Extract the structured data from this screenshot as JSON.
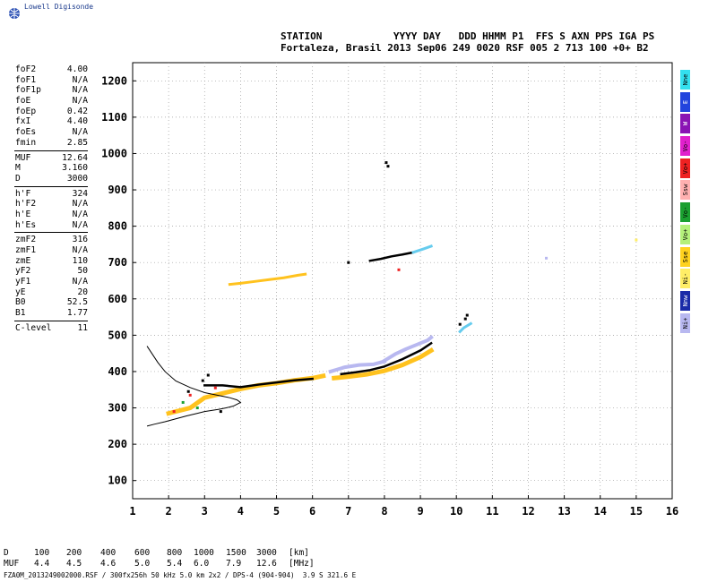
{
  "brand": "Lowell Digisonde",
  "header": {
    "line1": "STATION            YYYY DAY   DDD HHMM P1  FFS S AXN PPS IGA PS",
    "line2": "Fortaleza, Brasil 2013 Sep06 249 0020 RSF 005 2 713 100 +0+ B2"
  },
  "params": [
    [
      {
        "label": "foF2",
        "value": "4.00"
      },
      {
        "label": "foF1",
        "value": "N/A"
      },
      {
        "label": "foF1p",
        "value": "N/A"
      },
      {
        "label": "foE",
        "value": "N/A"
      },
      {
        "label": "foEp",
        "value": "0.42"
      },
      {
        "label": "fxI",
        "value": "4.40"
      },
      {
        "label": "foEs",
        "value": "N/A"
      },
      {
        "label": "fmin",
        "value": "2.85"
      }
    ],
    [
      {
        "label": "MUF",
        "value": "12.64"
      },
      {
        "label": "M",
        "value": "3.160"
      },
      {
        "label": "D",
        "value": "3000"
      }
    ],
    [
      {
        "label": "h'F",
        "value": "324"
      },
      {
        "label": "h'F2",
        "value": "N/A"
      },
      {
        "label": "h'E",
        "value": "N/A"
      },
      {
        "label": "h'Es",
        "value": "N/A"
      }
    ],
    [
      {
        "label": "zmF2",
        "value": "316"
      },
      {
        "label": "zmF1",
        "value": "N/A"
      },
      {
        "label": "zmE",
        "value": "110"
      },
      {
        "label": "yF2",
        "value": "50"
      },
      {
        "label": "yF1",
        "value": "N/A"
      },
      {
        "label": "yE",
        "value": "20"
      },
      {
        "label": "B0",
        "value": "52.5"
      },
      {
        "label": "B1",
        "value": "1.77"
      }
    ],
    [
      {
        "label": "C-level",
        "value": "11"
      }
    ]
  ],
  "legend": [
    {
      "label": "Nne",
      "color": "#33e0ee"
    },
    {
      "label": "E",
      "color": "#2244dd"
    },
    {
      "label": "W",
      "color": "#8a14b4"
    },
    {
      "label": "Vo-",
      "color": "#e020cc"
    },
    {
      "label": "Vo+",
      "color": "#ee2222"
    },
    {
      "label": "Ssw",
      "color": "#ffb0b0"
    },
    {
      "label": "Vo-",
      "color": "#1aa030"
    },
    {
      "label": "Vo+",
      "color": "#b4f07a"
    },
    {
      "label": "Sse",
      "color": "#ffd21e"
    },
    {
      "label": "Ni-",
      "color": "#ffee66"
    },
    {
      "label": "Nnw",
      "color": "#1a2aa8"
    },
    {
      "label": "Ni+",
      "color": "#b8b8f0"
    }
  ],
  "muf_table": {
    "d_label": "D",
    "muf_label": "MUF",
    "d_values": [
      "100",
      "200",
      "400",
      "600",
      "800",
      "1000",
      "1500",
      "3000"
    ],
    "muf_values": [
      "4.4",
      "4.5",
      "4.6",
      "5.0",
      "5.4",
      "6.0",
      "7.9",
      "12.6"
    ],
    "d_unit": "[km]",
    "muf_unit": "[MHz]"
  },
  "footer": "FZA0M_2013249002000.RSF / 300fx256h 50 kHz 5.0 km 2x2 / DPS-4 (904-904)  3.9 S 321.6 E",
  "chart_data": {
    "type": "scatter",
    "title": "",
    "xlabel": "",
    "ylabel": "",
    "xlim": [
      1,
      16
    ],
    "ylim": [
      50,
      1250
    ],
    "x_ticks": [
      1,
      2,
      3,
      4,
      5,
      6,
      7,
      8,
      9,
      10,
      11,
      12,
      13,
      14,
      15,
      16
    ],
    "y_ticks": [
      100,
      200,
      300,
      400,
      500,
      600,
      700,
      800,
      900,
      1000,
      1100,
      1200
    ],
    "grid": "dotted",
    "series": [
      {
        "color": "#ffc21e",
        "segments": [
          {
            "x": [
              2.0,
              2.6,
              3.0,
              3.5,
              4.0,
              4.5,
              5.0,
              5.5,
              6.0,
              6.3
            ],
            "y": [
              285,
              300,
              328,
              340,
              352,
              362,
              368,
              376,
              382,
              388
            ],
            "width": 5
          },
          {
            "x": [
              6.6,
              7.0,
              7.5,
              8.0,
              8.5,
              9.0,
              9.3
            ],
            "y": [
              382,
              386,
              392,
              402,
              418,
              440,
              458
            ],
            "width": 5
          }
        ]
      },
      {
        "color": "#000000",
        "segments": [
          {
            "x": [
              3.0,
              3.5,
              4.0,
              4.5,
              5.0,
              5.5,
              6.0
            ],
            "y": [
              362,
              362,
              357,
              364,
              370,
              376,
              380
            ],
            "width": 2.5
          },
          {
            "x": [
              6.8,
              7.2,
              7.6,
              8.0,
              8.5,
              9.0,
              9.3
            ],
            "y": [
              393,
              398,
              404,
              414,
              434,
              458,
              478
            ],
            "width": 2.5
          }
        ]
      },
      {
        "color": "#b8b8f0",
        "segments": [
          {
            "x": [
              6.5,
              6.9,
              7.3,
              7.7,
              8.0
            ],
            "y": [
              400,
              412,
              418,
              420,
              428
            ],
            "width": 4
          },
          {
            "x": [
              8.0,
              8.3,
              8.6,
              8.9,
              9.2,
              9.3
            ],
            "y": [
              430,
              448,
              462,
              474,
              486,
              494
            ],
            "width": 4
          }
        ]
      },
      {
        "color": "#ffc21e",
        "segments": [
          {
            "x": [
              3.7,
              4.0,
              4.4,
              4.8,
              5.2,
              5.6,
              5.8
            ],
            "y": [
              640,
              643,
              648,
              653,
              658,
              665,
              668
            ],
            "width": 3
          }
        ]
      },
      {
        "color": "#000000",
        "segments": [
          {
            "x": [
              7.6,
              7.9,
              8.2,
              8.5,
              8.8
            ],
            "y": [
              705,
              710,
              717,
              722,
              728
            ],
            "width": 2.5
          }
        ]
      },
      {
        "color": "#66ccee",
        "segments": [
          {
            "x": [
              8.8,
              9.1,
              9.3
            ],
            "y": [
              728,
              738,
              745
            ],
            "width": 3
          }
        ]
      },
      {
        "color": "#66ccee",
        "segments": [
          {
            "x": [
              10.1,
              10.2,
              10.4
            ],
            "y": [
              510,
              520,
              532
            ],
            "width": 3
          }
        ]
      }
    ],
    "points": [
      {
        "x": 8.05,
        "y": 975,
        "color": "#000000"
      },
      {
        "x": 8.1,
        "y": 965,
        "color": "#000000"
      },
      {
        "x": 7.0,
        "y": 700,
        "color": "#000000"
      },
      {
        "x": 10.3,
        "y": 555,
        "color": "#000000"
      },
      {
        "x": 10.25,
        "y": 545,
        "color": "#000000"
      },
      {
        "x": 10.1,
        "y": 530,
        "color": "#000000"
      },
      {
        "x": 8.4,
        "y": 680,
        "color": "#ee2222"
      },
      {
        "x": 12.5,
        "y": 712,
        "color": "#b8b8f0"
      },
      {
        "x": 15.0,
        "y": 762,
        "color": "#ffee66"
      },
      {
        "x": 2.4,
        "y": 315,
        "color": "#1aa030"
      },
      {
        "x": 2.8,
        "y": 300,
        "color": "#1aa030"
      },
      {
        "x": 2.6,
        "y": 335,
        "color": "#ee2222"
      },
      {
        "x": 2.15,
        "y": 290,
        "color": "#ee2222"
      },
      {
        "x": 3.3,
        "y": 355,
        "color": "#ee2222"
      },
      {
        "x": 2.95,
        "y": 375,
        "color": "#000000"
      },
      {
        "x": 3.1,
        "y": 390,
        "color": "#000000"
      },
      {
        "x": 2.55,
        "y": 345,
        "color": "#000000"
      },
      {
        "x": 3.45,
        "y": 290,
        "color": "#000000"
      }
    ],
    "profile": {
      "color": "#000000",
      "x": [
        1.4,
        1.6,
        1.9,
        2.2,
        2.5,
        2.8,
        3.0,
        3.2,
        3.4,
        3.6,
        3.8,
        4.0,
        3.9,
        3.7,
        3.4,
        3.0,
        2.6,
        2.2,
        1.9,
        1.7,
        1.4
      ],
      "y": [
        250,
        255,
        262,
        270,
        278,
        285,
        290,
        293,
        296,
        300,
        305,
        315,
        322,
        328,
        334,
        342,
        356,
        374,
        400,
        425,
        470
      ]
    }
  }
}
